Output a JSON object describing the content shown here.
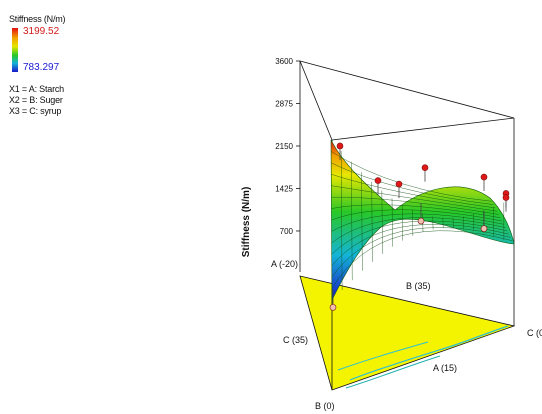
{
  "legend": {
    "title": "Stiffness (N/m)",
    "max": "3199.52",
    "min": "783.297",
    "colors": [
      "#e21010",
      "#f2a000",
      "#e6e600",
      "#28c828",
      "#14b4d8",
      "#1818c8"
    ]
  },
  "factors": [
    "X1 = A: Starch",
    "X2 = B: Suger",
    "X3 = C: syrup"
  ],
  "chart_data": {
    "type": "surface-3d-mixture",
    "zlabel": "Stiffness (N/m)",
    "zticks": [
      3600,
      2875,
      2150,
      1425,
      700
    ],
    "zlim": [
      700,
      3600
    ],
    "vertex_labels": [
      "A (-20)",
      "B (35)",
      "C (35)",
      "C (0)",
      "A (15)",
      "B (0)"
    ],
    "surface_range": {
      "min": 783.297,
      "max": 3199.52
    },
    "design_points": [
      {
        "z": 2150,
        "above_surface": true
      },
      {
        "z": 1780,
        "above_surface": true
      },
      {
        "z": 1560,
        "above_surface": true
      },
      {
        "z": 1500,
        "above_surface": true
      },
      {
        "z": 1620,
        "above_surface": true
      },
      {
        "z": 1340,
        "above_surface": true
      },
      {
        "z": 1270,
        "above_surface": true
      },
      {
        "z": 870,
        "above_surface": false
      },
      {
        "z": 740,
        "above_surface": false
      },
      {
        "z": 420,
        "above_surface": false
      }
    ]
  }
}
